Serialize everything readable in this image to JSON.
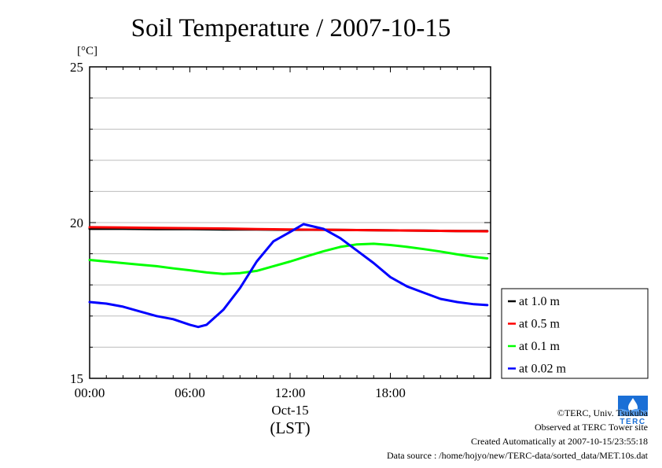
{
  "chart_data": {
    "type": "line",
    "title": "Soil Temperature / 2007-10-15",
    "ylabel": "[°C]",
    "xlabel": "(LST)",
    "x_sublabel": "Oct-15",
    "xlim": [
      0,
      24
    ],
    "ylim": [
      15,
      25
    ],
    "x_ticks": [
      0,
      6,
      12,
      18
    ],
    "x_tick_labels": [
      "00:00",
      "06:00",
      "12:00",
      "18:00"
    ],
    "y_ticks": [
      15,
      20,
      25
    ],
    "y_tick_labels": [
      "15",
      "20",
      "25"
    ],
    "grid": true,
    "legend_position": "right",
    "series": [
      {
        "name": "at 1.0 m",
        "color": "#000000",
        "x": [
          0,
          2,
          4,
          6,
          8,
          10,
          12,
          14,
          16,
          18,
          20,
          22,
          23.8
        ],
        "y": [
          19.8,
          19.8,
          19.79,
          19.79,
          19.78,
          19.78,
          19.77,
          19.77,
          19.76,
          19.75,
          19.74,
          19.73,
          19.73
        ]
      },
      {
        "name": "at 0.5 m",
        "color": "#ff0000",
        "x": [
          0,
          2,
          4,
          6,
          8,
          10,
          12,
          14,
          16,
          18,
          20,
          22,
          23.8
        ],
        "y": [
          19.85,
          19.84,
          19.83,
          19.82,
          19.81,
          19.79,
          19.78,
          19.77,
          19.76,
          19.75,
          19.74,
          19.73,
          19.72
        ]
      },
      {
        "name": "at 0.1 m",
        "color": "#00ff00",
        "x": [
          0,
          1,
          2,
          3,
          4,
          5,
          6,
          7,
          8,
          9,
          10,
          11,
          12,
          13,
          14,
          15,
          16,
          17,
          18,
          19,
          20,
          21,
          22,
          23,
          23.8
        ],
        "y": [
          18.8,
          18.75,
          18.7,
          18.65,
          18.6,
          18.53,
          18.47,
          18.4,
          18.35,
          18.38,
          18.45,
          18.6,
          18.75,
          18.92,
          19.08,
          19.22,
          19.3,
          19.32,
          19.28,
          19.22,
          19.15,
          19.07,
          18.98,
          18.9,
          18.85
        ]
      },
      {
        "name": "at 0.02 m",
        "color": "#0000ff",
        "x": [
          0,
          1,
          2,
          3,
          4,
          5,
          6,
          6.5,
          7,
          8,
          9,
          10,
          11,
          12,
          12.8,
          13.2,
          14,
          15,
          16,
          17,
          18,
          19,
          20,
          21,
          22,
          23,
          23.8
        ],
        "y": [
          17.45,
          17.4,
          17.3,
          17.15,
          17.0,
          16.9,
          16.72,
          16.65,
          16.72,
          17.2,
          17.9,
          18.75,
          19.4,
          19.7,
          19.95,
          19.9,
          19.8,
          19.5,
          19.1,
          18.7,
          18.25,
          17.95,
          17.75,
          17.55,
          17.45,
          17.38,
          17.35
        ]
      }
    ]
  },
  "credits": {
    "copyright": "©TERC, Univ. Tsukuba",
    "site": "Observed at TERC Tower site",
    "created": "Created Automatically at 2007-10-15/23:55:18",
    "source": "Data source : /home/hojyo/new/TERC-data/sorted_data/MET.10s.dat"
  },
  "logo": {
    "text": "TERC",
    "icon": "terc-logo-icon",
    "color": "#1a6fd6"
  }
}
